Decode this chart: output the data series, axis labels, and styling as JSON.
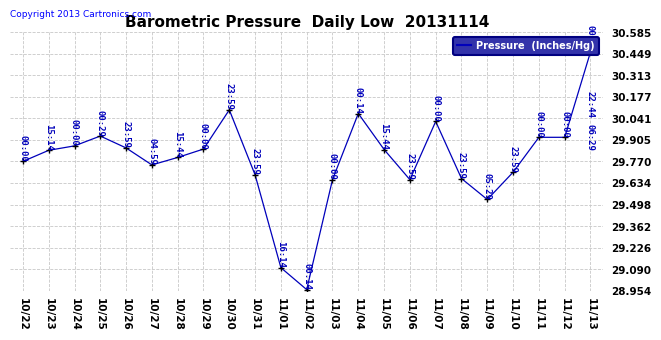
{
  "title": "Barometric Pressure  Daily Low  20131114",
  "copyright": "Copyright 2013 Cartronics.com",
  "legend_label": "Pressure  (Inches/Hg)",
  "background_color": "#ffffff",
  "plot_bg_color": "#ffffff",
  "grid_color": "#c8c8c8",
  "line_color": "#0000bb",
  "marker_color": "#000000",
  "label_color": "#0000bb",
  "x_labels": [
    "10/22",
    "10/23",
    "10/24",
    "10/25",
    "10/26",
    "10/27",
    "10/28",
    "10/29",
    "10/30",
    "10/31",
    "11/01",
    "11/02",
    "11/03",
    "11/04",
    "11/05",
    "11/06",
    "11/07",
    "11/08",
    "11/09",
    "11/10",
    "11/11",
    "11/12",
    "11/13"
  ],
  "y_ticks": [
    28.954,
    29.09,
    29.226,
    29.362,
    29.498,
    29.634,
    29.77,
    29.905,
    30.041,
    30.177,
    30.313,
    30.449,
    30.585
  ],
  "series": [
    [
      0,
      29.77
    ],
    [
      1,
      29.84
    ],
    [
      2,
      29.868
    ],
    [
      3,
      29.93
    ],
    [
      4,
      29.855
    ],
    [
      5,
      29.748
    ],
    [
      6,
      29.795
    ],
    [
      7,
      29.848
    ],
    [
      8,
      30.095
    ],
    [
      9,
      29.685
    ],
    [
      10,
      29.1
    ],
    [
      11,
      28.962
    ],
    [
      12,
      29.655
    ],
    [
      13,
      30.072
    ],
    [
      14,
      29.845
    ],
    [
      15,
      29.655
    ],
    [
      16,
      30.022
    ],
    [
      17,
      29.662
    ],
    [
      18,
      29.53
    ],
    [
      19,
      29.702
    ],
    [
      20,
      29.922
    ],
    [
      21,
      29.922
    ],
    [
      22,
      30.46
    ]
  ],
  "point_labels": [
    [
      0,
      29.77,
      "00:00"
    ],
    [
      1,
      29.84,
      "15:14"
    ],
    [
      2,
      29.868,
      "00:00"
    ],
    [
      3,
      29.93,
      "00:29"
    ],
    [
      4,
      29.855,
      "23:59"
    ],
    [
      5,
      29.748,
      "04:59"
    ],
    [
      6,
      29.795,
      "15:44"
    ],
    [
      7,
      29.848,
      "00:00"
    ],
    [
      8,
      30.095,
      "23:59"
    ],
    [
      9,
      29.685,
      "23:59"
    ],
    [
      10,
      29.1,
      "16:14"
    ],
    [
      11,
      28.962,
      "00:14"
    ],
    [
      12,
      29.655,
      "00:00"
    ],
    [
      13,
      30.072,
      "00:14"
    ],
    [
      14,
      29.845,
      "15:44"
    ],
    [
      15,
      29.655,
      "23:59"
    ],
    [
      16,
      30.022,
      "00:00"
    ],
    [
      17,
      29.662,
      "23:59"
    ],
    [
      18,
      29.53,
      "05:29"
    ],
    [
      19,
      29.702,
      "23:59"
    ],
    [
      20,
      29.922,
      "00:00"
    ],
    [
      21,
      29.922,
      "00:00"
    ],
    [
      22,
      30.46,
      "00:00"
    ]
  ],
  "extra_labels": [
    [
      22,
      30.05,
      "22:44"
    ],
    [
      22,
      29.84,
      "06:29"
    ]
  ],
  "ylim": [
    28.954,
    30.585
  ],
  "title_fontsize": 11,
  "label_fontsize": 6.5,
  "copyright_fontsize": 6.5
}
